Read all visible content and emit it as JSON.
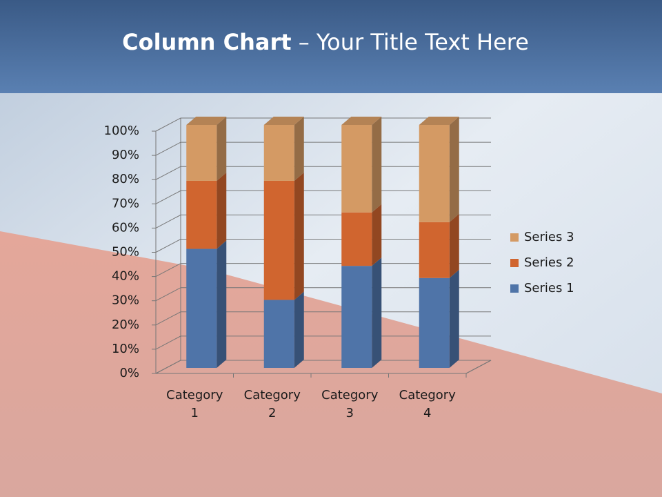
{
  "chart_data": {
    "type": "stacked_bar_100_3d",
    "title_parts": [
      "Column Chart",
      "– Your Title Text Here"
    ],
    "categories": [
      "Category 1",
      "Category 2",
      "Category 3",
      "Category 4"
    ],
    "series": [
      {
        "name": "Series 1",
        "color": "#4f74a8",
        "values": [
          49,
          28,
          42,
          37
        ]
      },
      {
        "name": "Series 2",
        "color": "#d0652f",
        "values": [
          28,
          49,
          22,
          23
        ]
      },
      {
        "name": "Series 3",
        "color": "#d49a64",
        "values": [
          23,
          23,
          36,
          40
        ]
      }
    ],
    "ylim": [
      0,
      100
    ],
    "yticks": [
      {
        "value": 0,
        "label": "0%"
      },
      {
        "value": 10,
        "label": "10%"
      },
      {
        "value": 20,
        "label": "20%"
      },
      {
        "value": 30,
        "label": "30%"
      },
      {
        "value": 40,
        "label": "40%"
      },
      {
        "value": 50,
        "label": "50%"
      },
      {
        "value": 60,
        "label": "60%"
      },
      {
        "value": 70,
        "label": "70%"
      },
      {
        "value": 80,
        "label": "80%"
      },
      {
        "value": 90,
        "label": "90%"
      },
      {
        "value": 100,
        "label": "100%"
      }
    ],
    "grid": true,
    "legend": "right"
  }
}
